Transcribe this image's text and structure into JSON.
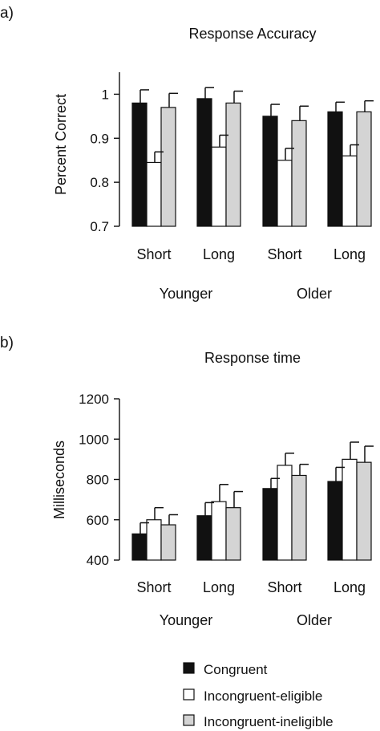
{
  "chart_data": [
    {
      "type": "bar",
      "panel_label": "a)",
      "title": "Response Accuracy",
      "ylabel": "Percent Correct",
      "xlabel": "",
      "ylim": [
        0.7,
        1.05
      ],
      "yticks": [
        "0.7",
        "0.8",
        "0.9",
        "1"
      ],
      "categories": [
        "Short",
        "Long",
        "Short",
        "Long"
      ],
      "groups": [
        {
          "label": "Younger",
          "categories": [
            "Short",
            "Long"
          ]
        },
        {
          "label": "Older",
          "categories": [
            "Short",
            "Long"
          ]
        }
      ],
      "series": [
        {
          "name": "Congruent",
          "values": [
            0.98,
            0.99,
            0.95,
            0.96
          ],
          "errors": [
            0.03,
            0.025,
            0.027,
            0.022
          ]
        },
        {
          "name": "Incongruent-eligible",
          "values": [
            0.845,
            0.88,
            0.85,
            0.86
          ],
          "errors": [
            0.024,
            0.027,
            0.027,
            0.025
          ]
        },
        {
          "name": "Incongruent-ineligible",
          "values": [
            0.97,
            0.98,
            0.94,
            0.96
          ],
          "errors": [
            0.032,
            0.027,
            0.033,
            0.025
          ]
        }
      ],
      "grid": false
    },
    {
      "type": "bar",
      "panel_label": "b)",
      "title": "Response time",
      "ylabel": "Milliseconds",
      "xlabel": "",
      "ylim": [
        400,
        1200
      ],
      "yticks": [
        "400",
        "600",
        "800",
        "1000",
        "1200"
      ],
      "categories": [
        "Short",
        "Long",
        "Short",
        "Long"
      ],
      "groups": [
        {
          "label": "Younger",
          "categories": [
            "Short",
            "Long"
          ]
        },
        {
          "label": "Older",
          "categories": [
            "Short",
            "Long"
          ]
        }
      ],
      "series": [
        {
          "name": "Congruent",
          "values": [
            530,
            620,
            755,
            790
          ],
          "errors": [
            55,
            65,
            50,
            70
          ]
        },
        {
          "name": "Incongruent-eligible",
          "values": [
            600,
            690,
            870,
            900
          ],
          "errors": [
            60,
            85,
            60,
            85
          ]
        },
        {
          "name": "Incongruent-ineligible",
          "values": [
            575,
            660,
            820,
            885
          ],
          "errors": [
            50,
            80,
            55,
            80
          ]
        }
      ],
      "grid": false
    }
  ],
  "legend": {
    "placement": "bottom-right",
    "items": [
      {
        "label": "Congruent",
        "color": "#111111"
      },
      {
        "label": "Incongruent-eligible",
        "color": "#ffffff"
      },
      {
        "label": "Incongruent-ineligible",
        "color": "#d4d4d4"
      }
    ]
  },
  "colors": {
    "congruent": "#111111",
    "incongruent_eligible": "#ffffff",
    "incongruent_ineligible": "#d4d4d4",
    "axis": "#111111"
  }
}
